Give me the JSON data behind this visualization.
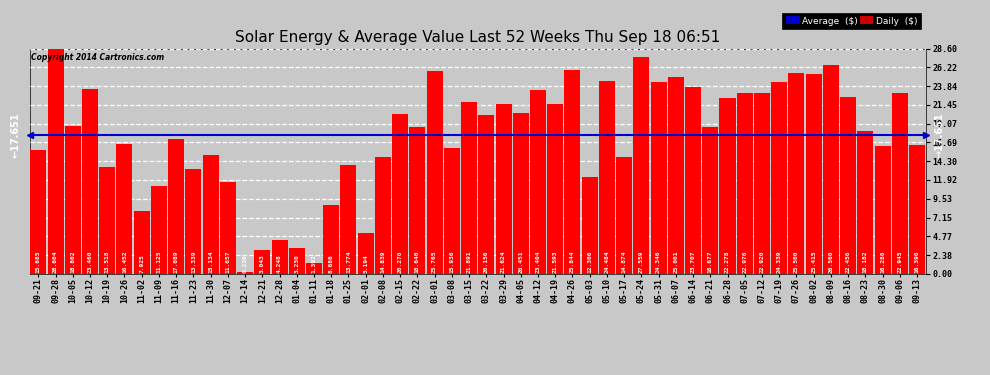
{
  "title": "Solar Energy & Average Value Last 52 Weeks Thu Sep 18 06:51",
  "copyright": "Copyright 2014 Cartronics.com",
  "average_value": 17.651,
  "bar_color": "#ff0000",
  "avg_line_color": "#0000cc",
  "background_color": "#c8c8c8",
  "ytick_values": [
    0.0,
    2.38,
    4.77,
    7.15,
    9.53,
    11.92,
    14.3,
    16.69,
    19.07,
    21.45,
    23.84,
    26.22,
    28.6
  ],
  "ylim": [
    0.0,
    28.6
  ],
  "categories": [
    "09-21",
    "09-28",
    "10-05",
    "10-12",
    "10-19",
    "10-26",
    "11-02",
    "11-09",
    "11-16",
    "11-23",
    "11-30",
    "12-07",
    "12-14",
    "12-21",
    "12-28",
    "01-04",
    "01-11",
    "01-18",
    "01-25",
    "02-01",
    "02-08",
    "02-15",
    "02-22",
    "03-01",
    "03-08",
    "03-15",
    "03-22",
    "03-29",
    "04-05",
    "04-12",
    "04-19",
    "04-26",
    "05-03",
    "05-10",
    "05-17",
    "05-24",
    "05-31",
    "06-07",
    "06-14",
    "06-21",
    "06-28",
    "07-05",
    "07-12",
    "07-19",
    "07-26",
    "08-02",
    "08-09",
    "08-16",
    "08-23",
    "08-30",
    "09-06",
    "09-13"
  ],
  "values": [
    15.685,
    28.604,
    18.802,
    23.46,
    13.518,
    16.452,
    7.925,
    11.125,
    17.089,
    13.339,
    15.134,
    11.657,
    0.236,
    3.043,
    4.248,
    3.23,
    1.392,
    8.686,
    13.774,
    5.194,
    14.839,
    20.27,
    18.64,
    25.765,
    15.936,
    21.891,
    20.156,
    21.624,
    20.451,
    23.404,
    21.593,
    25.844,
    12.306,
    24.484,
    14.874,
    27.559,
    24.346,
    25.001,
    23.707,
    18.677,
    22.278,
    22.976,
    22.92,
    24.339,
    25.5,
    25.415,
    26.56,
    22.456,
    18.182,
    16.286,
    22.945,
    16.396
  ],
  "avg_label": "Average  ($)",
  "daily_label": "Daily  ($)",
  "legend_avg_color": "#0000cc",
  "legend_daily_color": "#cc0000",
  "left_avg_label": "←17.651",
  "right_avg_label": "→17.651",
  "title_fontsize": 11,
  "tick_fontsize": 6,
  "bar_label_fontsize": 4.5,
  "avg_label_fontsize": 7
}
